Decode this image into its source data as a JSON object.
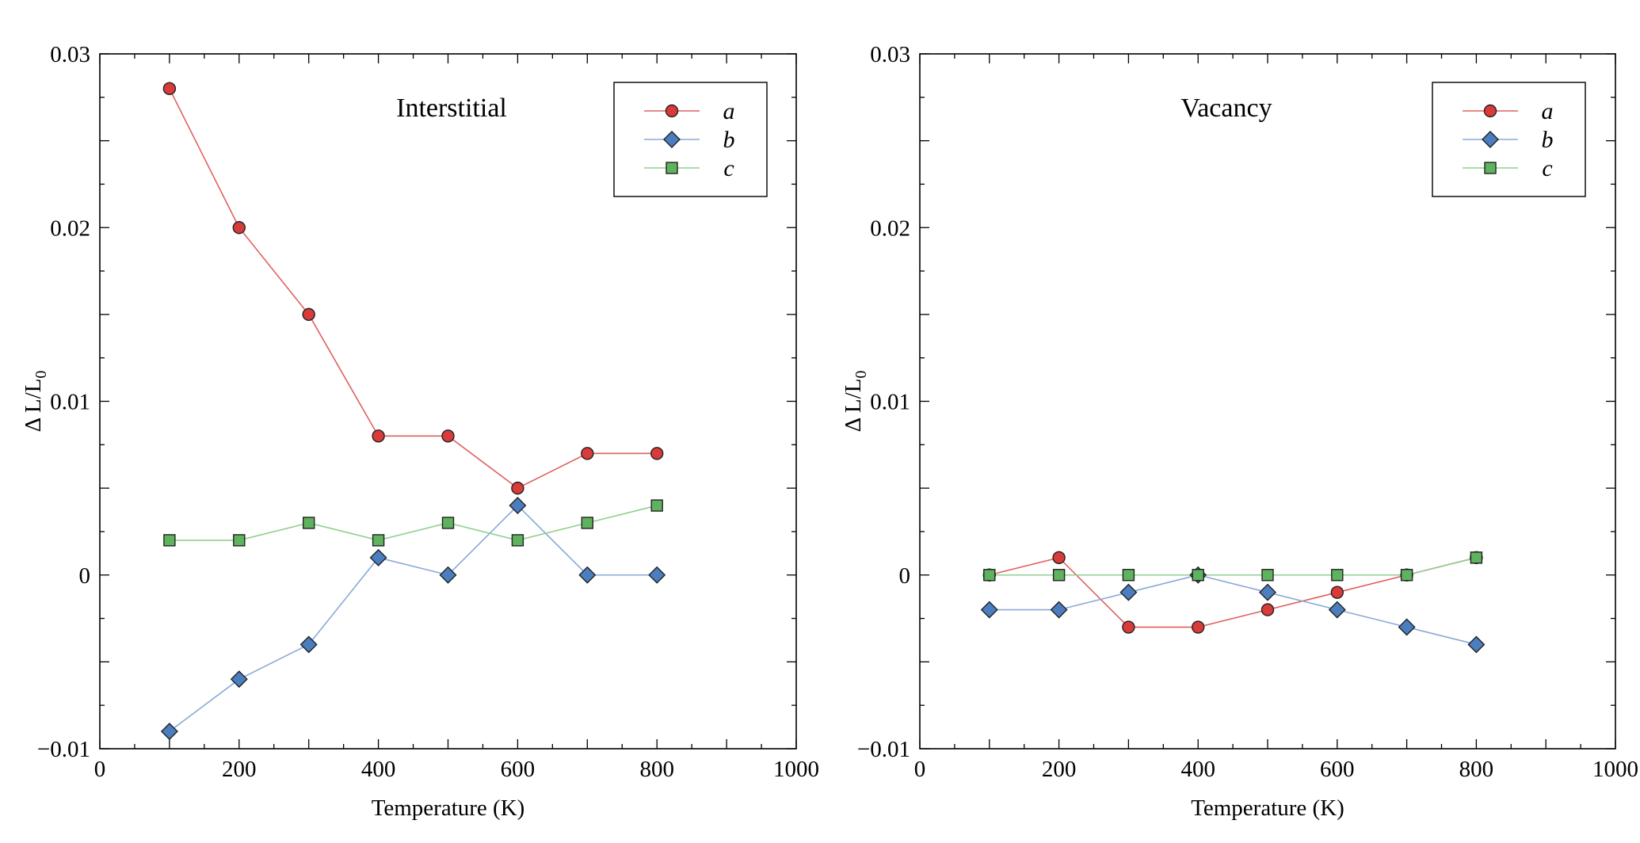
{
  "colors": {
    "a": "#d93a3a",
    "b": "#4a7ebf",
    "c": "#5fb35f",
    "a_line": "#e06060",
    "b_line": "#8aaad6",
    "c_line": "#8fcf8f"
  },
  "chart_data": [
    {
      "type": "line",
      "title": "Interstitial",
      "xlabel": "Temperature (K)",
      "ylabel_main": "Δ L/L",
      "ylabel_sub": "0",
      "xlim": [
        0,
        1000
      ],
      "ylim": [
        -0.01,
        0.03
      ],
      "xticks": [
        0,
        200,
        400,
        600,
        800,
        1000
      ],
      "yticks": [
        -0.01,
        0,
        0.01,
        0.02,
        0.03
      ],
      "xtick_labels": [
        "0",
        "200",
        "400",
        "600",
        "800",
        "1000"
      ],
      "ytick_labels": [
        "−0.01",
        "0",
        "0.01",
        "0.02",
        "0.03"
      ],
      "legend_position": "top-right",
      "x": [
        100,
        200,
        300,
        400,
        500,
        600,
        700,
        800
      ],
      "series": [
        {
          "name": "a",
          "marker": "circle",
          "values": [
            0.028,
            0.02,
            0.015,
            0.008,
            0.008,
            0.005,
            0.007,
            0.007
          ]
        },
        {
          "name": "b",
          "marker": "diamond",
          "values": [
            -0.009,
            -0.006,
            -0.004,
            0.001,
            0.0,
            0.004,
            0.0,
            0.0
          ]
        },
        {
          "name": "c",
          "marker": "square",
          "values": [
            0.002,
            0.002,
            0.003,
            0.002,
            0.003,
            0.002,
            0.003,
            0.004
          ]
        }
      ]
    },
    {
      "type": "line",
      "title": "Vacancy",
      "xlabel": "Temperature (K)",
      "ylabel_main": "Δ L/L",
      "ylabel_sub": "0",
      "xlim": [
        0,
        1000
      ],
      "ylim": [
        -0.01,
        0.03
      ],
      "xticks": [
        0,
        200,
        400,
        600,
        800,
        1000
      ],
      "yticks": [
        -0.01,
        0,
        0.01,
        0.02,
        0.03
      ],
      "xtick_labels": [
        "0",
        "200",
        "400",
        "600",
        "800",
        "1000"
      ],
      "ytick_labels": [
        "−0.01",
        "0",
        "0.01",
        "0.02",
        "0.03"
      ],
      "legend_position": "top-right",
      "x": [
        100,
        200,
        300,
        400,
        500,
        600,
        700,
        800
      ],
      "series": [
        {
          "name": "a",
          "marker": "circle",
          "values": [
            0.0,
            0.001,
            -0.003,
            -0.003,
            -0.002,
            -0.001,
            0.0,
            0.001
          ]
        },
        {
          "name": "b",
          "marker": "diamond",
          "values": [
            -0.002,
            -0.002,
            -0.001,
            0.0,
            -0.001,
            -0.002,
            -0.003,
            -0.004
          ]
        },
        {
          "name": "c",
          "marker": "square",
          "values": [
            0.0,
            0.0,
            0.0,
            0.0,
            0.0,
            0.0,
            0.0,
            0.001
          ]
        }
      ]
    }
  ]
}
